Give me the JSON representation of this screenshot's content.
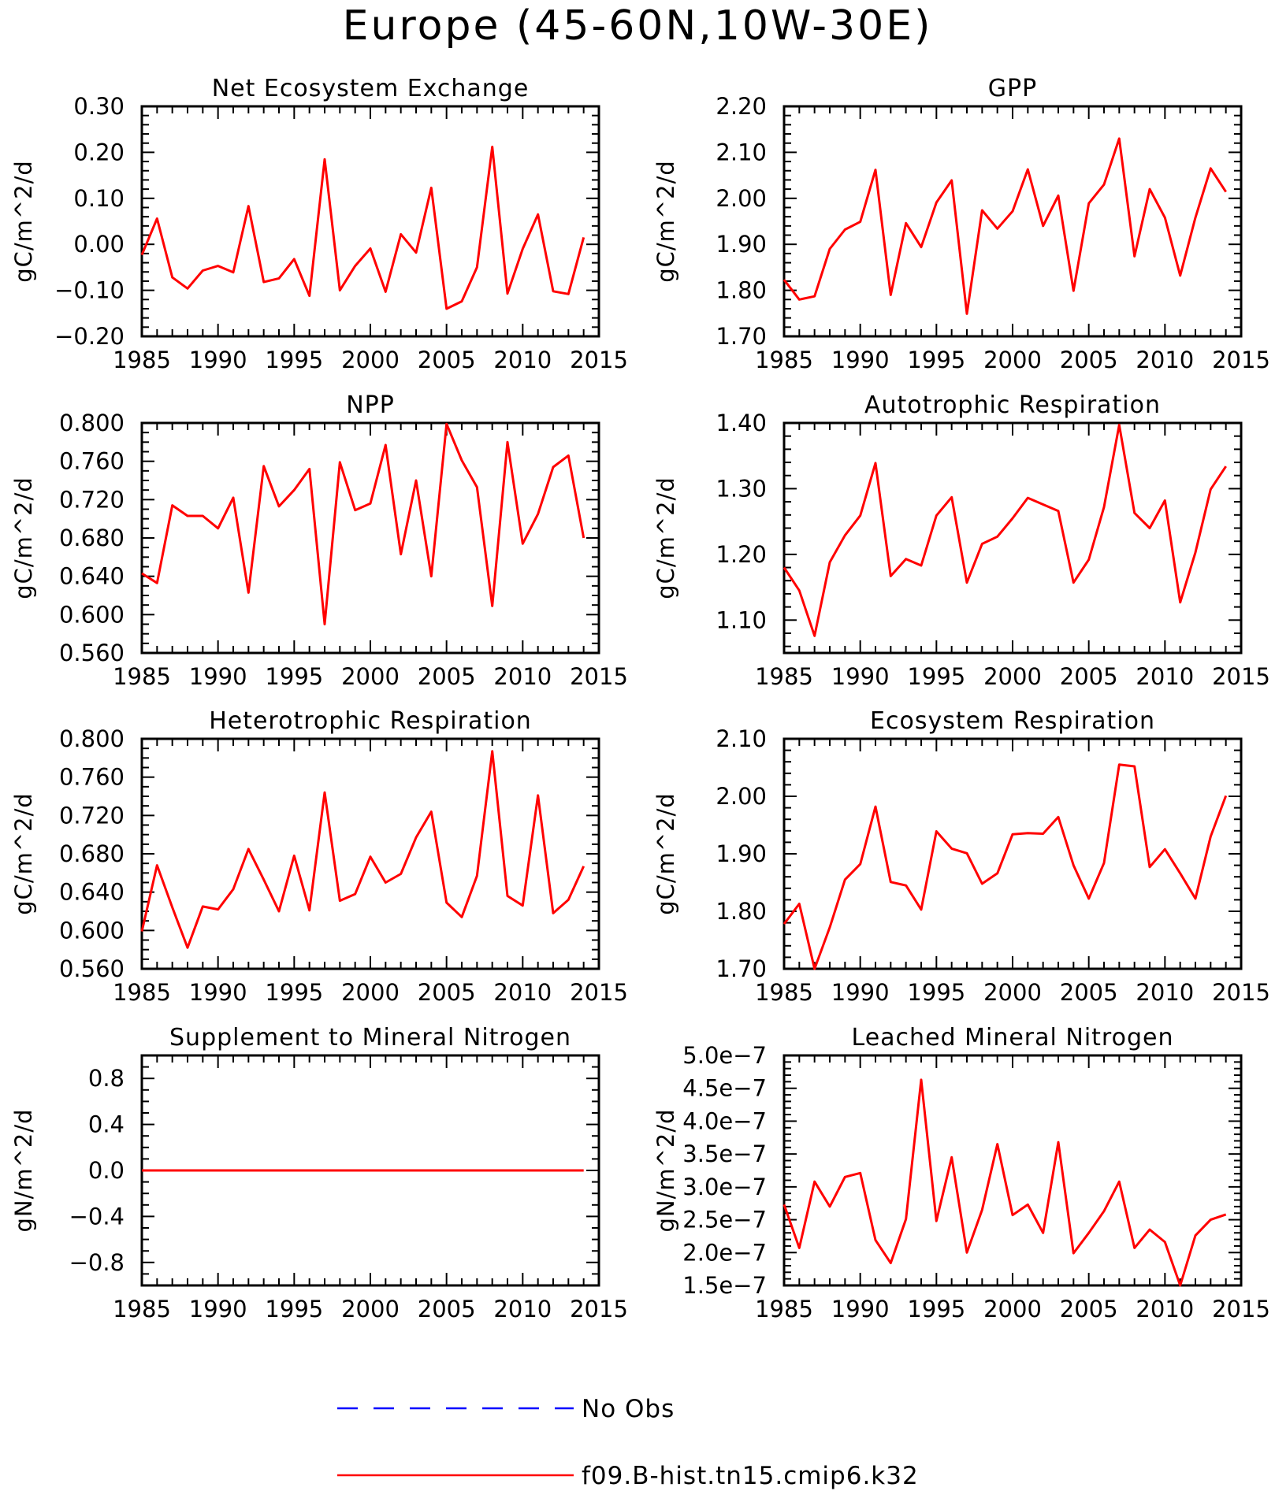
{
  "title": "Europe (45-60N,10W-30E)",
  "legend": [
    {
      "label": "No Obs",
      "color": "#0000ff",
      "dash": true
    },
    {
      "label": "f09.B-hist.tn15.cmip6.k32",
      "color": "#ff0000",
      "dash": false
    }
  ],
  "chart_data": [
    {
      "type": "line",
      "title": "Net Ecosystem Exchange",
      "ylabel": "gC/m^2/d",
      "xlim": [
        1985,
        2015
      ],
      "ylim": [
        -0.2,
        0.3
      ],
      "x_ticks": [
        1985,
        1990,
        1995,
        2000,
        2005,
        2010,
        2015
      ],
      "y_ticks": [
        -0.2,
        -0.1,
        0.0,
        0.1,
        0.2,
        0.3
      ],
      "y_tick_labels": [
        "−0.20",
        "−0.10",
        "0.00",
        "0.10",
        "0.20",
        "0.30"
      ],
      "y_minor": 5,
      "series": [
        {
          "color": "#ff0000",
          "x": [
            1985,
            1986,
            1987,
            1988,
            1989,
            1990,
            1991,
            1992,
            1993,
            1994,
            1995,
            1996,
            1997,
            1998,
            1999,
            2000,
            2001,
            2002,
            2003,
            2004,
            2005,
            2006,
            2007,
            2008,
            2009,
            2010,
            2011,
            2012,
            2013,
            2014
          ],
          "values": [
            -0.023,
            0.056,
            -0.072,
            -0.096,
            -0.057,
            -0.047,
            -0.061,
            0.083,
            -0.082,
            -0.074,
            -0.032,
            -0.112,
            0.185,
            -0.1,
            -0.047,
            -0.009,
            -0.103,
            0.022,
            -0.018,
            0.123,
            -0.14,
            -0.124,
            -0.05,
            0.212,
            -0.107,
            -0.01,
            0.065,
            -0.102,
            -0.108,
            0.015
          ]
        }
      ]
    },
    {
      "type": "line",
      "title": "GPP",
      "ylabel": "gC/m^2/d",
      "xlim": [
        1985,
        2015
      ],
      "ylim": [
        1.7,
        2.2
      ],
      "x_ticks": [
        1985,
        1990,
        1995,
        2000,
        2005,
        2010,
        2015
      ],
      "y_ticks": [
        1.7,
        1.8,
        1.9,
        2.0,
        2.1,
        2.2
      ],
      "y_tick_labels": [
        "1.70",
        "1.80",
        "1.90",
        "2.00",
        "2.10",
        "2.20"
      ],
      "y_minor": 5,
      "series": [
        {
          "color": "#ff0000",
          "x": [
            1985,
            1986,
            1987,
            1988,
            1989,
            1990,
            1991,
            1992,
            1993,
            1994,
            1995,
            1996,
            1997,
            1998,
            1999,
            2000,
            2001,
            2002,
            2003,
            2004,
            2005,
            2006,
            2007,
            2008,
            2009,
            2010,
            2011,
            2012,
            2013,
            2014
          ],
          "values": [
            1.823,
            1.78,
            1.787,
            1.89,
            1.932,
            1.949,
            2.062,
            1.79,
            1.946,
            1.894,
            1.991,
            2.039,
            1.749,
            1.974,
            1.934,
            1.972,
            2.063,
            1.94,
            2.006,
            1.799,
            1.989,
            2.03,
            2.13,
            1.874,
            2.02,
            1.958,
            1.832,
            1.958,
            2.065,
            2.014
          ]
        }
      ]
    },
    {
      "type": "line",
      "title": "NPP",
      "ylabel": "gC/m^2/d",
      "xlim": [
        1985,
        2015
      ],
      "ylim": [
        0.56,
        0.8
      ],
      "x_ticks": [
        1985,
        1990,
        1995,
        2000,
        2005,
        2010,
        2015
      ],
      "y_ticks": [
        0.56,
        0.6,
        0.64,
        0.68,
        0.72,
        0.76,
        0.8
      ],
      "y_tick_labels": [
        "0.560",
        "0.600",
        "0.640",
        "0.680",
        "0.720",
        "0.760",
        "0.800"
      ],
      "y_minor": 4,
      "series": [
        {
          "color": "#ff0000",
          "x": [
            1985,
            1986,
            1987,
            1988,
            1989,
            1990,
            1991,
            1992,
            1993,
            1994,
            1995,
            1996,
            1997,
            1998,
            1999,
            2000,
            2001,
            2002,
            2003,
            2004,
            2005,
            2006,
            2007,
            2008,
            2009,
            2010,
            2011,
            2012,
            2013,
            2014
          ],
          "values": [
            0.643,
            0.633,
            0.714,
            0.703,
            0.703,
            0.69,
            0.722,
            0.623,
            0.755,
            0.713,
            0.73,
            0.752,
            0.59,
            0.759,
            0.709,
            0.716,
            0.777,
            0.663,
            0.74,
            0.64,
            0.799,
            0.761,
            0.733,
            0.609,
            0.78,
            0.674,
            0.705,
            0.754,
            0.766,
            0.68
          ]
        }
      ]
    },
    {
      "type": "line",
      "title": "Autotrophic Respiration",
      "ylabel": "gC/m^2/d",
      "xlim": [
        1985,
        2015
      ],
      "ylim": [
        1.05,
        1.4
      ],
      "x_ticks": [
        1985,
        1990,
        1995,
        2000,
        2005,
        2010,
        2015
      ],
      "y_ticks": [
        1.1,
        1.2,
        1.3,
        1.4
      ],
      "y_tick_labels": [
        "1.10",
        "1.20",
        "1.30",
        "1.40"
      ],
      "y_minor": 5,
      "series": [
        {
          "color": "#ff0000",
          "x": [
            1985,
            1986,
            1987,
            1988,
            1989,
            1990,
            1991,
            1992,
            1993,
            1994,
            1995,
            1996,
            1997,
            1998,
            1999,
            2000,
            2001,
            2002,
            2003,
            2004,
            2005,
            2006,
            2007,
            2008,
            2009,
            2010,
            2011,
            2012,
            2013,
            2014
          ],
          "values": [
            1.18,
            1.145,
            1.076,
            1.188,
            1.229,
            1.259,
            1.339,
            1.167,
            1.193,
            1.183,
            1.259,
            1.287,
            1.157,
            1.216,
            1.227,
            1.255,
            1.286,
            1.276,
            1.266,
            1.157,
            1.192,
            1.272,
            1.397,
            1.263,
            1.24,
            1.282,
            1.127,
            1.203,
            1.299,
            1.334
          ]
        }
      ]
    },
    {
      "type": "line",
      "title": "Heterotrophic Respiration",
      "ylabel": "gC/m^2/d",
      "xlim": [
        1985,
        2015
      ],
      "ylim": [
        0.56,
        0.8
      ],
      "x_ticks": [
        1985,
        1990,
        1995,
        2000,
        2005,
        2010,
        2015
      ],
      "y_ticks": [
        0.56,
        0.6,
        0.64,
        0.68,
        0.72,
        0.76,
        0.8
      ],
      "y_tick_labels": [
        "0.560",
        "0.600",
        "0.640",
        "0.680",
        "0.720",
        "0.760",
        "0.800"
      ],
      "y_minor": 4,
      "series": [
        {
          "color": "#ff0000",
          "x": [
            1985,
            1986,
            1987,
            1988,
            1989,
            1990,
            1991,
            1992,
            1993,
            1994,
            1995,
            1996,
            1997,
            1998,
            1999,
            2000,
            2001,
            2002,
            2003,
            2004,
            2005,
            2006,
            2007,
            2008,
            2009,
            2010,
            2011,
            2012,
            2013,
            2014
          ],
          "values": [
            0.599,
            0.668,
            0.624,
            0.582,
            0.625,
            0.622,
            0.643,
            0.685,
            0.653,
            0.62,
            0.678,
            0.621,
            0.744,
            0.631,
            0.638,
            0.677,
            0.65,
            0.659,
            0.697,
            0.724,
            0.629,
            0.614,
            0.657,
            0.787,
            0.636,
            0.626,
            0.741,
            0.618,
            0.632,
            0.667
          ]
        }
      ]
    },
    {
      "type": "line",
      "title": "Ecosystem Respiration",
      "ylabel": "gC/m^2/d",
      "xlim": [
        1985,
        2015
      ],
      "ylim": [
        1.7,
        2.1
      ],
      "x_ticks": [
        1985,
        1990,
        1995,
        2000,
        2005,
        2010,
        2015
      ],
      "y_ticks": [
        1.7,
        1.8,
        1.9,
        2.0,
        2.1
      ],
      "y_tick_labels": [
        "1.70",
        "1.80",
        "1.90",
        "2.00",
        "2.10"
      ],
      "y_minor": 5,
      "series": [
        {
          "color": "#ff0000",
          "x": [
            1985,
            1986,
            1987,
            1988,
            1989,
            1990,
            1991,
            1992,
            1993,
            1994,
            1995,
            1996,
            1997,
            1998,
            1999,
            2000,
            2001,
            2002,
            2003,
            2004,
            2005,
            2006,
            2007,
            2008,
            2009,
            2010,
            2011,
            2012,
            2013,
            2014
          ],
          "values": [
            1.778,
            1.813,
            1.7,
            1.772,
            1.855,
            1.882,
            1.982,
            1.851,
            1.845,
            1.803,
            1.939,
            1.909,
            1.901,
            1.848,
            1.866,
            1.934,
            1.936,
            1.935,
            1.964,
            1.88,
            1.822,
            1.884,
            2.055,
            2.052,
            1.877,
            1.908,
            1.866,
            1.822,
            1.93,
            2.001
          ]
        }
      ]
    },
    {
      "type": "line",
      "title": "Supplement to Mineral Nitrogen",
      "ylabel": "gN/m^2/d",
      "xlim": [
        1985,
        2015
      ],
      "ylim": [
        -1.0,
        1.0
      ],
      "x_ticks": [
        1985,
        1990,
        1995,
        2000,
        2005,
        2010,
        2015
      ],
      "y_ticks": [
        -0.8,
        -0.4,
        0.0,
        0.4,
        0.8
      ],
      "y_tick_labels": [
        "−0.8",
        "−0.4",
        "0.0",
        "0.4",
        "0.8"
      ],
      "y_minor": 4,
      "series": [
        {
          "color": "#ff0000",
          "x": [
            1985,
            1986,
            1987,
            1988,
            1989,
            1990,
            1991,
            1992,
            1993,
            1994,
            1995,
            1996,
            1997,
            1998,
            1999,
            2000,
            2001,
            2002,
            2003,
            2004,
            2005,
            2006,
            2007,
            2008,
            2009,
            2010,
            2011,
            2012,
            2013,
            2014
          ],
          "values": [
            0,
            0,
            0,
            0,
            0,
            0,
            0,
            0,
            0,
            0,
            0,
            0,
            0,
            0,
            0,
            0,
            0,
            0,
            0,
            0,
            0,
            0,
            0,
            0,
            0,
            0,
            0,
            0,
            0,
            0
          ]
        }
      ]
    },
    {
      "type": "line",
      "title": "Leached Mineral Nitrogen",
      "ylabel": "gN/m^2/d",
      "xlim": [
        1985,
        2015
      ],
      "ylim": [
        1.5e-07,
        5e-07
      ],
      "x_ticks": [
        1985,
        1990,
        1995,
        2000,
        2005,
        2010,
        2015
      ],
      "y_ticks": [
        1.5e-07,
        2e-07,
        2.5e-07,
        3e-07,
        3.5e-07,
        4e-07,
        4.5e-07,
        5e-07
      ],
      "y_tick_labels": [
        "1.5e−7",
        "2.0e−7",
        "2.5e−7",
        "3.0e−7",
        "3.5e−7",
        "4.0e−7",
        "4.5e−7",
        "5.0e−7"
      ],
      "y_minor": 5,
      "series": [
        {
          "color": "#ff0000",
          "x": [
            1985,
            1986,
            1987,
            1988,
            1989,
            1990,
            1991,
            1992,
            1993,
            1994,
            1995,
            1996,
            1997,
            1998,
            1999,
            2000,
            2001,
            2002,
            2003,
            2004,
            2005,
            2006,
            2007,
            2008,
            2009,
            2010,
            2011,
            2012,
            2013,
            2014
          ],
          "values": [
            2.73e-07,
            2.07e-07,
            3.08e-07,
            2.7e-07,
            3.15e-07,
            3.21e-07,
            2.19e-07,
            1.84e-07,
            2.51e-07,
            4.63e-07,
            2.48e-07,
            3.45e-07,
            2e-07,
            2.65e-07,
            3.65e-07,
            2.57e-07,
            2.73e-07,
            2.3e-07,
            3.68e-07,
            1.99e-07,
            2.3e-07,
            2.63e-07,
            3.08e-07,
            2.07e-07,
            2.35e-07,
            2.16e-07,
            1.5e-07,
            2.26e-07,
            2.5e-07,
            2.58e-07
          ]
        }
      ]
    }
  ]
}
